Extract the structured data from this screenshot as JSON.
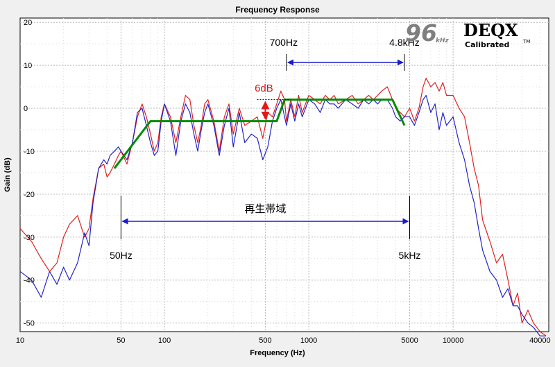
{
  "chart_data": {
    "type": "line",
    "title": "Frequency Response",
    "xlabel": "Frequency (Hz)",
    "ylabel": "Gain (dB)",
    "xscale": "log",
    "xlim": [
      10,
      46000
    ],
    "ylim": [
      -52,
      21
    ],
    "x_ticks": [
      {
        "v": 10,
        "label": "10"
      },
      {
        "v": 50,
        "label": "50"
      },
      {
        "v": 100,
        "label": "100"
      },
      {
        "v": 500,
        "label": "500"
      },
      {
        "v": 1000,
        "label": "1000"
      },
      {
        "v": 5000,
        "label": "5000"
      },
      {
        "v": 10000,
        "label": "10000"
      },
      {
        "v": 40000,
        "label": "40000"
      }
    ],
    "y_ticks": [
      {
        "v": 20,
        "label": "20"
      },
      {
        "v": 10,
        "label": "10"
      },
      {
        "v": 0,
        "label": "0"
      },
      {
        "v": -10,
        "label": "-10"
      },
      {
        "v": -20,
        "label": "-20"
      },
      {
        "v": -30,
        "label": "-30"
      },
      {
        "v": -40,
        "label": "-40"
      },
      {
        "v": -50,
        "label": "-50"
      }
    ],
    "grid": true,
    "series": [
      {
        "color": "#e02020",
        "x": [
          10,
          12,
          14,
          16,
          18,
          20,
          22,
          25,
          28,
          30,
          32,
          35,
          38,
          40,
          42,
          45,
          48,
          50,
          55,
          60,
          65,
          70,
          75,
          80,
          85,
          90,
          95,
          100,
          110,
          120,
          130,
          140,
          150,
          160,
          170,
          180,
          190,
          200,
          220,
          240,
          260,
          280,
          300,
          330,
          360,
          400,
          440,
          480,
          520,
          560,
          600,
          640,
          680,
          700,
          750,
          800,
          850,
          900,
          950,
          1000,
          1100,
          1200,
          1300,
          1400,
          1500,
          1600,
          1800,
          2000,
          2200,
          2400,
          2600,
          2800,
          3000,
          3200,
          3500,
          3800,
          4000,
          4300,
          4600,
          5000,
          5400,
          5800,
          6200,
          6500,
          7000,
          7500,
          8000,
          8500,
          9000,
          10000,
          11000,
          12000,
          13000,
          14000,
          15000,
          16000,
          18000,
          20000,
          22000,
          24000,
          26000,
          28000,
          30000,
          33000,
          36000,
          40000,
          44000
        ],
        "y": [
          -28,
          -31,
          -35,
          -38,
          -36,
          -30,
          -27,
          -25,
          -30,
          -28,
          -21,
          -14,
          -13,
          -16,
          -15,
          -13,
          -11,
          -10,
          -13,
          -8,
          -2,
          1,
          -2,
          -6,
          -10,
          -8,
          -2,
          1,
          -2,
          -8,
          -2,
          3,
          2,
          -4,
          -8,
          -4,
          1,
          2,
          -3,
          -10,
          -2,
          1,
          -6,
          0,
          -4,
          -3,
          -2,
          -7,
          -1,
          -2,
          1,
          4,
          2,
          -3,
          2,
          -2,
          3,
          -1,
          1,
          3,
          2,
          1,
          3,
          2,
          3,
          1,
          2,
          3,
          1,
          2,
          3,
          2,
          3,
          4,
          5,
          2,
          0,
          -1,
          -2,
          0,
          -3,
          0,
          5,
          7,
          5,
          6,
          4,
          6,
          3,
          3,
          0,
          -2,
          -8,
          -14,
          -18,
          -26,
          -31,
          -36,
          -34,
          -40,
          -46,
          -43,
          -50,
          -47,
          -50,
          -52,
          -53
        ]
      },
      {
        "color": "#2222c8",
        "x": [
          10,
          12,
          14,
          16,
          18,
          20,
          22,
          25,
          28,
          30,
          32,
          35,
          38,
          40,
          42,
          45,
          48,
          50,
          55,
          60,
          65,
          70,
          75,
          80,
          85,
          90,
          95,
          100,
          110,
          120,
          130,
          140,
          150,
          160,
          170,
          180,
          190,
          200,
          220,
          240,
          260,
          280,
          300,
          330,
          360,
          400,
          440,
          480,
          520,
          560,
          600,
          640,
          680,
          700,
          750,
          800,
          850,
          900,
          950,
          1000,
          1100,
          1200,
          1300,
          1400,
          1500,
          1600,
          1800,
          2000,
          2200,
          2400,
          2600,
          2800,
          3000,
          3200,
          3500,
          3800,
          4000,
          4300,
          4600,
          5000,
          5400,
          5800,
          6200,
          6500,
          7000,
          7500,
          8000,
          8500,
          9000,
          10000,
          11000,
          12000,
          13000,
          14000,
          15000,
          16000,
          18000,
          20000,
          22000,
          24000,
          26000,
          28000,
          30000,
          33000,
          36000,
          40000,
          44000
        ],
        "y": [
          -38,
          -40,
          -44,
          -38,
          -41,
          -37,
          -40,
          -36,
          -29,
          -32,
          -22,
          -14,
          -12,
          -13,
          -11,
          -10,
          -9,
          -10,
          -12,
          -8,
          -1,
          0,
          -4,
          -8,
          -11,
          -10,
          -3,
          1,
          -3,
          -11,
          -3,
          1,
          -1,
          -6,
          -10,
          -5,
          -1,
          1,
          -4,
          -11,
          -4,
          0,
          -9,
          -1,
          -8,
          -6,
          -7,
          -12,
          -9,
          -3,
          0,
          2,
          -2,
          -4,
          1,
          -3,
          1,
          -2,
          0,
          2,
          1,
          -1,
          2,
          1,
          1,
          0,
          2,
          1,
          0,
          2,
          1,
          2,
          1,
          2,
          2,
          0,
          -2,
          -3,
          -2,
          -2,
          -4,
          -1,
          2,
          3,
          -1,
          1,
          -5,
          -1,
          -4,
          -2,
          -8,
          -12,
          -18,
          -22,
          -28,
          -33,
          -38,
          -40,
          -44,
          -42,
          -46,
          -46,
          -48,
          -50,
          -51,
          -53,
          -53
        ]
      },
      {
        "color": "#008c00",
        "x": [
          45,
          80,
          600,
          680,
          3800,
          4600
        ],
        "y": [
          -14,
          -3,
          -3,
          2,
          2,
          -4
        ]
      }
    ],
    "annotations": {
      "label_700hz": "700Hz",
      "label_4_8khz": "4.8kHz",
      "label_6db": "6dB",
      "label_band": "再生帯域",
      "label_50hz": "50Hz",
      "label_5khz": "5kHz"
    },
    "logo": {
      "num": "96",
      "khz": "kHz",
      "brand": "DEQX",
      "sub": "Calibrated",
      "tm": "TM"
    }
  }
}
